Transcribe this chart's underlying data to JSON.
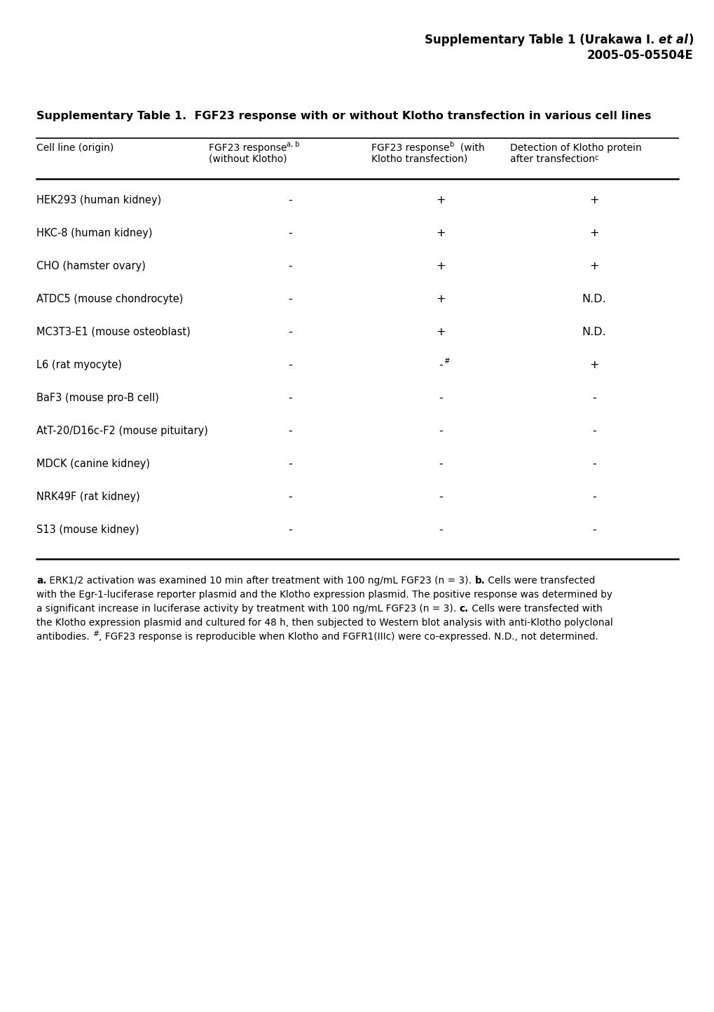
{
  "rows": [
    [
      "HEK293 (human kidney)",
      "-",
      "+",
      "+"
    ],
    [
      "HKC-8 (human kidney)",
      "-",
      "+",
      "+"
    ],
    [
      "CHO (hamster ovary)",
      "-",
      "+",
      "+"
    ],
    [
      "ATDC5 (mouse chondrocyte)",
      "-",
      "+",
      "N.D."
    ],
    [
      "MC3T3-E1 (mouse osteoblast)",
      "-",
      "+",
      "N.D."
    ],
    [
      "L6 (rat myocyte)",
      "-",
      "-",
      "+"
    ],
    [
      "BaF3 (mouse pro-B cell)",
      "-",
      "-",
      "-"
    ],
    [
      "AtT-20/D16c-F2 (mouse pituitary)",
      "-",
      "-",
      "-"
    ],
    [
      "MDCK (canine kidney)",
      "-",
      "-",
      "-"
    ],
    [
      "NRK49F (rat kidney)",
      "-",
      "-",
      "-"
    ],
    [
      "S13 (mouse kidney)",
      "-",
      "-",
      "-"
    ]
  ],
  "bg_color": "#ffffff",
  "text_color": "#000000"
}
